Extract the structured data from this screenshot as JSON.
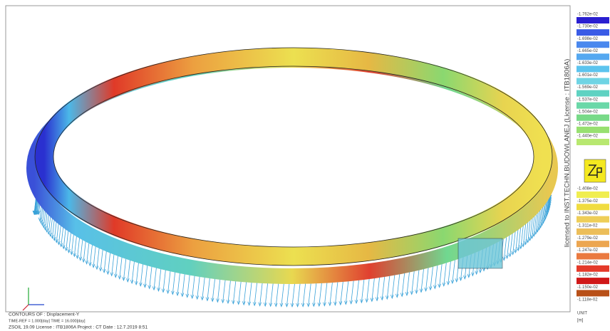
{
  "view": {
    "watermark": "licensed to INST.TECHN.BUDOWLANEJ (License : ITB1806A)"
  },
  "legend": {
    "upper": [
      {
        "label": "-1.762e-02",
        "color": "#2a1fd0"
      },
      {
        "label": "-1.730e-02",
        "color": "#3a5be6"
      },
      {
        "label": "-1.698e-02",
        "color": "#4a88ee"
      },
      {
        "label": "-1.665e-02",
        "color": "#55a8f0"
      },
      {
        "label": "-1.633e-02",
        "color": "#5cc4ee"
      },
      {
        "label": "-1.601e-02",
        "color": "#6fd4e4"
      },
      {
        "label": "-1.569e-02",
        "color": "#5fd2c2"
      },
      {
        "label": "-1.537e-02",
        "color": "#6ad8a8"
      },
      {
        "label": "-1.504e-02",
        "color": "#78da88"
      },
      {
        "label": "-1.472e-02",
        "color": "#98e070"
      },
      {
        "label": "-1.440e-02",
        "color": "#b8e870"
      }
    ],
    "lower": [
      {
        "label": "-1.408e-02",
        "color": "#f0ee50"
      },
      {
        "label": "-1.375e-02",
        "color": "#f0dc40"
      },
      {
        "label": "-1.343e-02",
        "color": "#eece58"
      },
      {
        "label": "-1.311e-02",
        "color": "#ecbe5a"
      },
      {
        "label": "-1.279e-02",
        "color": "#eca650"
      },
      {
        "label": "-1.247e-02",
        "color": "#ea7a40"
      },
      {
        "label": "-1.214e-02",
        "color": "#e43a2a"
      },
      {
        "label": "-1.182e-02",
        "color": "#d01818"
      },
      {
        "label": "-1.150e-02",
        "color": "#b85018"
      }
    ],
    "last": "-1.118e-02",
    "unit": "UNIT",
    "unit_value": "[m]"
  },
  "footer": {
    "line1": "CONTOURS OF : Displacement-Y",
    "line2": "TIME-REF = 1.000[day]   TIME = 16.000[day]",
    "line3": "ZSOIL 19.09   License : ITB1806A   Project : CT   Date : 12.7.2019   8:51"
  }
}
